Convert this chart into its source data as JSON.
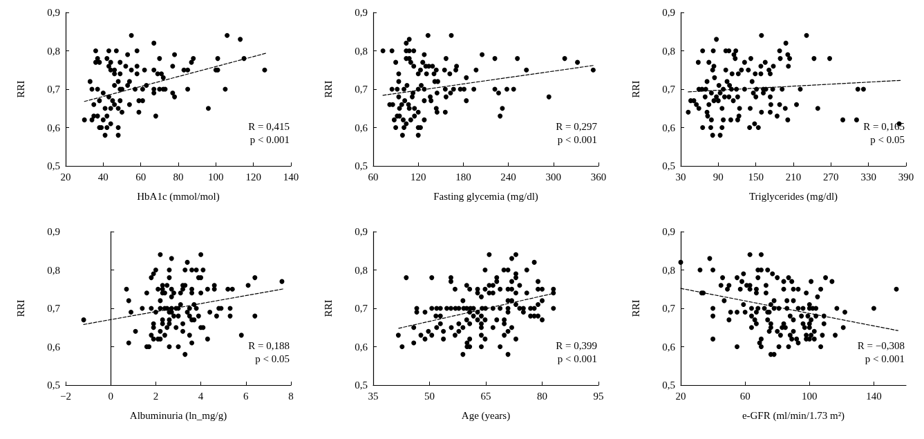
{
  "chart_data": [
    {
      "type": "scatter",
      "xlabel": "HbA1c (mmol/mol)",
      "ylabel": "RRI",
      "marker": "circle",
      "xlim": [
        20,
        140
      ],
      "xticks": [
        20,
        40,
        60,
        80,
        100,
        120,
        140
      ],
      "ylim": [
        0.5,
        0.9
      ],
      "yticks": [
        {
          "value": 0.5,
          "label": "0,5"
        },
        {
          "value": 0.6,
          "label": "0,6"
        },
        {
          "value": 0.7,
          "label": "0,7"
        },
        {
          "value": 0.8,
          "label": "0,8"
        },
        {
          "value": 0.9,
          "label": "0,9"
        }
      ],
      "annotations": [
        "R = 0,415",
        "p < 0.001"
      ],
      "series": [
        {
          "type": "scatter",
          "color": "#000000",
          "x": [
            30,
            33,
            34,
            34,
            35,
            35,
            36,
            36,
            37,
            37,
            38,
            38,
            37,
            38,
            39,
            40,
            41,
            40,
            41,
            42,
            42,
            43,
            43,
            43,
            44,
            44,
            44,
            42,
            44,
            45,
            46,
            46,
            46,
            46,
            47,
            48,
            48,
            48,
            48,
            49,
            49,
            49,
            49,
            50,
            50,
            52,
            53,
            53,
            54,
            54,
            55,
            55,
            57,
            58,
            58,
            58,
            59,
            59,
            61,
            62,
            63,
            61,
            67,
            67,
            67,
            67,
            68,
            69,
            70,
            70,
            71,
            72,
            72,
            73,
            77,
            77,
            78,
            78,
            83,
            85,
            85,
            87,
            88,
            96,
            100,
            101,
            101,
            105,
            106,
            113,
            115,
            126
          ],
          "values": [
            0.62,
            0.72,
            0.7,
            0.62,
            0.63,
            0.66,
            0.8,
            0.77,
            0.78,
            0.7,
            0.6,
            0.77,
            0.63,
            0.67,
            0.6,
            0.62,
            0.58,
            0.69,
            0.65,
            0.78,
            0.63,
            0.8,
            0.76,
            0.68,
            0.77,
            0.75,
            0.61,
            0.6,
            0.65,
            0.67,
            0.75,
            0.74,
            0.71,
            0.66,
            0.8,
            0.6,
            0.58,
            0.72,
            0.65,
            0.77,
            0.74,
            0.67,
            0.7,
            0.7,
            0.64,
            0.76,
            0.79,
            0.71,
            0.72,
            0.66,
            0.84,
            0.75,
            0.7,
            0.8,
            0.76,
            0.74,
            0.67,
            0.64,
            0.67,
            0.75,
            0.71,
            0.7,
            0.82,
            0.75,
            0.7,
            0.69,
            0.63,
            0.74,
            0.78,
            0.7,
            0.74,
            0.73,
            0.7,
            0.7,
            0.76,
            0.69,
            0.79,
            0.68,
            0.75,
            0.75,
            0.7,
            0.77,
            0.78,
            0.65,
            0.75,
            0.78,
            0.75,
            0.7,
            0.84,
            0.83,
            0.78,
            0.75
          ]
        },
        {
          "type": "line",
          "color": "#000000",
          "marker": "none",
          "line_style": "dashed",
          "x": [
            30,
            127
          ],
          "values": [
            0.668,
            0.794
          ]
        }
      ]
    },
    {
      "type": "scatter",
      "xlabel": "Fasting glycemia (mg/dl)",
      "ylabel": "RRI",
      "marker": "circle",
      "xlim": [
        60,
        360
      ],
      "xticks": [
        60,
        120,
        180,
        240,
        300,
        360
      ],
      "ylim": [
        0.5,
        0.9
      ],
      "yticks": [
        {
          "value": 0.5,
          "label": "0,5"
        },
        {
          "value": 0.6,
          "label": "0,6"
        },
        {
          "value": 0.7,
          "label": "0,7"
        },
        {
          "value": 0.8,
          "label": "0,8"
        },
        {
          "value": 0.9,
          "label": "0,9"
        }
      ],
      "annotations": [
        "R = 0,297",
        "p < 0.001"
      ],
      "series": [
        {
          "type": "scatter",
          "color": "#000000",
          "x": [
            73,
            82,
            85,
            85,
            86,
            88,
            90,
            90,
            92,
            92,
            94,
            94,
            94,
            95,
            95,
            98,
            99,
            100,
            101,
            101,
            102,
            104,
            104,
            104,
            105,
            104,
            108,
            108,
            108,
            107,
            108,
            110,
            110,
            112,
            113,
            114,
            114,
            115,
            115,
            120,
            120,
            120,
            120,
            120,
            123,
            123,
            124,
            126,
            128,
            128,
            128,
            128,
            130,
            131,
            133,
            134,
            136,
            137,
            139,
            141,
            142,
            144,
            144,
            145,
            145,
            146,
            155,
            156,
            156,
            157,
            157,
            162,
            163,
            164,
            167,
            170,
            171,
            176,
            181,
            184,
            184,
            194,
            197,
            205,
            222,
            222,
            227,
            229,
            232,
            238,
            247,
            252,
            264,
            294,
            315,
            332,
            353
          ],
          "values": [
            0.8,
            0.66,
            0.8,
            0.7,
            0.66,
            0.62,
            0.77,
            0.6,
            0.7,
            0.63,
            0.74,
            0.72,
            0.68,
            0.65,
            0.63,
            0.66,
            0.58,
            0.62,
            0.6,
            0.7,
            0.67,
            0.8,
            0.82,
            0.78,
            0.71,
            0.61,
            0.83,
            0.8,
            0.78,
            0.66,
            0.65,
            0.62,
            0.77,
            0.68,
            0.69,
            0.8,
            0.76,
            0.65,
            0.63,
            0.6,
            0.58,
            0.7,
            0.74,
            0.64,
            0.6,
            0.75,
            0.71,
            0.77,
            0.79,
            0.7,
            0.67,
            0.62,
            0.76,
            0.74,
            0.84,
            0.76,
            0.68,
            0.67,
            0.76,
            0.74,
            0.72,
            0.75,
            0.65,
            0.64,
            0.69,
            0.72,
            0.75,
            0.7,
            0.64,
            0.78,
            0.68,
            0.74,
            0.69,
            0.84,
            0.7,
            0.75,
            0.76,
            0.7,
            0.7,
            0.73,
            0.67,
            0.7,
            0.75,
            0.79,
            0.78,
            0.7,
            0.69,
            0.63,
            0.65,
            0.7,
            0.7,
            0.78,
            0.75,
            0.68,
            0.78,
            0.77,
            0.75
          ]
        },
        {
          "type": "line",
          "color": "#000000",
          "marker": "none",
          "line_style": "dashed",
          "x": [
            73,
            354
          ],
          "values": [
            0.684,
            0.762
          ]
        }
      ]
    },
    {
      "type": "scatter",
      "xlabel": "Triglycerides (mg/dl)",
      "ylabel": "RRI",
      "marker": "circle",
      "xlim": [
        30,
        390
      ],
      "xticks": [
        30,
        90,
        150,
        210,
        270,
        330,
        390
      ],
      "ylim": [
        0.5,
        0.9
      ],
      "yticks": [
        {
          "value": 0.5,
          "label": "0,5"
        },
        {
          "value": 0.6,
          "label": "0,6"
        },
        {
          "value": 0.7,
          "label": "0,7"
        },
        {
          "value": 0.8,
          "label": "0,8"
        },
        {
          "value": 0.9,
          "label": "0,9"
        }
      ],
      "annotations": [
        "R = 0,165",
        "p < 0.05"
      ],
      "series": [
        {
          "type": "scatter",
          "color": "#000000",
          "x": [
            42,
            46,
            51,
            55,
            58,
            59,
            59,
            64,
            65,
            65,
            69,
            70,
            72,
            72,
            73,
            75,
            75,
            78,
            79,
            79,
            81,
            81,
            82,
            83,
            83,
            84,
            87,
            87,
            90,
            91,
            93,
            93,
            96,
            96,
            98,
            98,
            100,
            102,
            102,
            104,
            107,
            107,
            108,
            110,
            111,
            112,
            114,
            115,
            117,
            118,
            119,
            121,
            121,
            122,
            123,
            124,
            127,
            132,
            132,
            138,
            140,
            141,
            142,
            144,
            146,
            148,
            149,
            150,
            151,
            154,
            158,
            158,
            159,
            159,
            162,
            162,
            165,
            166,
            171,
            173,
            173,
            173,
            174,
            177,
            178,
            184,
            188,
            188,
            189,
            192,
            197,
            198,
            201,
            201,
            204,
            202,
            215,
            221,
            231,
            243,
            249,
            268,
            289,
            311,
            313,
            322,
            379
          ],
          "values": [
            0.64,
            0.67,
            0.67,
            0.66,
            0.77,
            0.65,
            0.7,
            0.7,
            0.8,
            0.6,
            0.68,
            0.7,
            0.72,
            0.64,
            0.63,
            0.77,
            0.66,
            0.6,
            0.69,
            0.62,
            0.58,
            0.75,
            0.8,
            0.76,
            0.67,
            0.73,
            0.83,
            0.68,
            0.67,
            0.71,
            0.58,
            0.69,
            0.65,
            0.6,
            0.62,
            0.7,
            0.68,
            0.8,
            0.75,
            0.72,
            0.8,
            0.68,
            0.71,
            0.62,
            0.7,
            0.74,
            0.67,
            0.79,
            0.78,
            0.8,
            0.7,
            0.68,
            0.62,
            0.74,
            0.63,
            0.65,
            0.75,
            0.77,
            0.7,
            0.75,
            0.6,
            0.65,
            0.78,
            0.72,
            0.69,
            0.61,
            0.74,
            0.68,
            0.7,
            0.6,
            0.76,
            0.74,
            0.84,
            0.64,
            0.7,
            0.69,
            0.77,
            0.7,
            0.75,
            0.74,
            0.64,
            0.68,
            0.66,
            0.7,
            0.76,
            0.63,
            0.66,
            0.8,
            0.78,
            0.7,
            0.65,
            0.82,
            0.62,
            0.79,
            0.78,
            0.76,
            0.66,
            0.7,
            0.84,
            0.78,
            0.65,
            0.78,
            0.62,
            0.62,
            0.7,
            0.7,
            0.61
          ]
        },
        {
          "type": "line",
          "color": "#000000",
          "marker": "none",
          "line_style": "dashed",
          "x": [
            42,
            382
          ],
          "values": [
            0.693,
            0.723
          ]
        }
      ]
    },
    {
      "type": "scatter",
      "xlabel": "Albuminuria (ln_mg/g)",
      "ylabel": "RRI",
      "marker": "circle",
      "xlim": [
        -2,
        8
      ],
      "xticks": [
        {
          "value": -2,
          "label": "−2"
        },
        0,
        2,
        4,
        6,
        8
      ],
      "ylim": [
        0.5,
        0.9
      ],
      "yticks": [
        {
          "value": 0.5,
          "label": "0,5"
        },
        {
          "value": 0.6,
          "label": "0,6"
        },
        {
          "value": 0.7,
          "label": "0,7"
        },
        {
          "value": 0.8,
          "label": "0,8"
        },
        {
          "value": 0.9,
          "label": "0,9"
        }
      ],
      "annotations": [
        "R = 0,188",
        "p < 0.05"
      ],
      "series": [
        {
          "type": "scatter",
          "color": "#000000",
          "x": [
            -1.2,
            0.7,
            0.8,
            0.9,
            0.8,
            1.1,
            1.4,
            1.6,
            1.6,
            1.7,
            1.8,
            1.8,
            1.8,
            1.9,
            1.9,
            1.9,
            1.9,
            2.0,
            2.0,
            2.1,
            2.1,
            2.2,
            2.2,
            2.2,
            2.2,
            2.2,
            2.3,
            2.3,
            2.3,
            2.3,
            2.3,
            2.4,
            2.4,
            2.4,
            2.5,
            2.5,
            2.5,
            2.6,
            2.6,
            2.6,
            2.6,
            2.6,
            2.6,
            2.7,
            2.7,
            2.7,
            2.7,
            2.7,
            2.8,
            2.8,
            2.9,
            2.9,
            3.0,
            3.0,
            3.0,
            3.1,
            3.1,
            3.2,
            3.2,
            3.2,
            3.2,
            3.3,
            3.3,
            3.3,
            3.4,
            3.4,
            3.5,
            3.5,
            3.5,
            3.6,
            3.6,
            3.6,
            3.6,
            3.6,
            3.7,
            3.7,
            3.8,
            3.8,
            3.9,
            3.9,
            4.0,
            4.0,
            4.0,
            4.0,
            4.1,
            4.1,
            4.3,
            4.3,
            4.4,
            4.6,
            4.6,
            4.7,
            4.8,
            4.9,
            5.2,
            5.3,
            5.3,
            5.4,
            5.8,
            6.1,
            6.4,
            6.4,
            7.6
          ],
          "values": [
            0.67,
            0.75,
            0.72,
            0.69,
            0.61,
            0.64,
            0.7,
            0.74,
            0.6,
            0.6,
            0.7,
            0.78,
            0.63,
            0.65,
            0.66,
            0.79,
            0.62,
            0.8,
            0.69,
            0.62,
            0.75,
            0.72,
            0.84,
            0.7,
            0.64,
            0.62,
            0.67,
            0.76,
            0.74,
            0.66,
            0.75,
            0.7,
            0.74,
            0.63,
            0.7,
            0.76,
            0.65,
            0.69,
            0.67,
            0.8,
            0.78,
            0.6,
            0.66,
            0.73,
            0.7,
            0.83,
            0.75,
            0.69,
            0.68,
            0.74,
            0.7,
            0.65,
            0.6,
            0.7,
            0.68,
            0.74,
            0.71,
            0.64,
            0.76,
            0.66,
            0.75,
            0.58,
            0.8,
            0.76,
            0.82,
            0.69,
            0.68,
            0.7,
            0.63,
            0.61,
            0.75,
            0.74,
            0.67,
            0.8,
            0.71,
            0.67,
            0.7,
            0.8,
            0.78,
            0.68,
            0.84,
            0.65,
            0.78,
            0.74,
            0.8,
            0.65,
            0.62,
            0.75,
            0.69,
            0.75,
            0.76,
            0.68,
            0.7,
            0.7,
            0.75,
            0.68,
            0.7,
            0.75,
            0.63,
            0.76,
            0.78,
            0.68,
            0.77
          ]
        },
        {
          "type": "line",
          "color": "#000000",
          "marker": "none",
          "line_style": "dashed",
          "x": [
            -1.2,
            7.7
          ],
          "values": [
            0.658,
            0.751
          ]
        }
      ]
    },
    {
      "type": "scatter",
      "xlabel": "Age (years)",
      "ylabel": "RRI",
      "marker": "circle",
      "xlim": [
        35,
        95
      ],
      "xticks": [
        35,
        50,
        65,
        80,
        95
      ],
      "ylim": [
        0.5,
        0.9
      ],
      "yticks": [
        {
          "value": 0.5,
          "label": "0,5"
        },
        {
          "value": 0.6,
          "label": "0,6"
        },
        {
          "value": 0.7,
          "label": "0,7"
        },
        {
          "value": 0.8,
          "label": "0,8"
        },
        {
          "value": 0.9,
          "label": "0,9"
        }
      ],
      "annotations": [
        "R = 0,399",
        "p < 0.001"
      ],
      "series": [
        {
          "type": "scatter",
          "color": "#000000",
          "x": [
            41.7,
            42.7,
            43.8,
            45.8,
            45.8,
            46.6,
            46.6,
            47.7,
            48.8,
            48.8,
            49.7,
            50.6,
            50.6,
            50.6,
            51.7,
            51.9,
            51.9,
            52.9,
            52.9,
            52.9,
            53.7,
            53.7,
            54.6,
            55.7,
            55.7,
            55.8,
            55.7,
            56.8,
            56.8,
            56.9,
            57.8,
            57.8,
            57.8,
            58.9,
            58.9,
            58.9,
            59.1,
            59.9,
            59.9,
            59.9,
            60,
            60,
            60.7,
            60.7,
            60.7,
            60.7,
            60.7,
            60.9,
            61.7,
            61.7,
            62.8,
            62.8,
            62.8,
            62.8,
            63.8,
            63.8,
            63.8,
            63.8,
            63.8,
            63.8,
            64,
            64.8,
            64.8,
            64.8,
            64.8,
            64.9,
            65.9,
            65.9,
            65.9,
            66.9,
            66.9,
            66.9,
            66.9,
            67.9,
            67.9,
            67.9,
            68.8,
            68.8,
            68.8,
            69.8,
            69.9,
            69.9,
            69.9,
            70.9,
            70.9,
            70.9,
            70.9,
            70.9,
            70.9,
            70.9,
            71.9,
            71.9,
            71.9,
            71.9,
            71.9,
            73,
            73,
            73,
            73,
            73,
            73,
            74,
            74,
            75,
            75,
            75.9,
            75.9,
            76.9,
            76.9,
            77.9,
            77.9,
            77.9,
            78.9,
            78.9,
            78.9,
            78.9,
            80,
            80,
            80,
            83,
            83,
            83
          ],
          "values": [
            0.63,
            0.6,
            0.78,
            0.65,
            0.61,
            0.7,
            0.69,
            0.63,
            0.69,
            0.62,
            0.64,
            0.78,
            0.7,
            0.63,
            0.68,
            0.65,
            0.7,
            0.66,
            0.7,
            0.68,
            0.64,
            0.62,
            0.7,
            0.78,
            0.77,
            0.65,
            0.7,
            0.75,
            0.63,
            0.7,
            0.66,
            0.64,
            0.7,
            0.72,
            0.58,
            0.65,
            0.7,
            0.76,
            0.67,
            0.7,
            0.61,
            0.6,
            0.75,
            0.69,
            0.66,
            0.62,
            0.6,
            0.7,
            0.68,
            0.7,
            0.75,
            0.74,
            0.69,
            0.67,
            0.73,
            0.68,
            0.66,
            0.65,
            0.63,
            0.6,
            0.7,
            0.8,
            0.75,
            0.67,
            0.62,
            0.7,
            0.84,
            0.76,
            0.74,
            0.76,
            0.74,
            0.7,
            0.65,
            0.78,
            0.77,
            0.67,
            0.75,
            0.7,
            0.6,
            0.8,
            0.67,
            0.66,
            0.63,
            0.8,
            0.75,
            0.72,
            0.7,
            0.69,
            0.64,
            0.58,
            0.83,
            0.77,
            0.75,
            0.72,
            0.65,
            0.84,
            0.79,
            0.78,
            0.74,
            0.71,
            0.62,
            0.76,
            0.7,
            0.69,
            0.7,
            0.74,
            0.8,
            0.7,
            0.68,
            0.82,
            0.7,
            0.68,
            0.77,
            0.75,
            0.71,
            0.68,
            0.75,
            0.72,
            0.67,
            0.75,
            0.74,
            0.7
          ]
        },
        {
          "type": "line",
          "color": "#000000",
          "marker": "none",
          "line_style": "dashed",
          "x": [
            41.8,
            83.5
          ],
          "values": [
            0.648,
            0.74
          ]
        }
      ]
    },
    {
      "type": "scatter",
      "xlabel": "e-GFR (ml/min/1.73 m²)",
      "ylabel": "RRI",
      "marker": "circle",
      "xlim": [
        20,
        160
      ],
      "xticks": [
        20,
        60,
        100,
        140
      ],
      "ylim": [
        0.5,
        0.9
      ],
      "yticks": [
        {
          "value": 0.5,
          "label": "0,5"
        },
        {
          "value": 0.6,
          "label": "0,6"
        },
        {
          "value": 0.7,
          "label": "0,7"
        },
        {
          "value": 0.8,
          "label": "0,8"
        },
        {
          "value": 0.9,
          "label": "0,9"
        }
      ],
      "annotations": [
        "R = −0,308",
        "p < 0.001"
      ],
      "series": [
        {
          "type": "scatter",
          "color": "#000000",
          "x": [
            20,
            32,
            33,
            34,
            38,
            40,
            40,
            40,
            40,
            45,
            46,
            47,
            49,
            50,
            50,
            51,
            55,
            55,
            55,
            57,
            58,
            59,
            59,
            60,
            61,
            63,
            63,
            63,
            64,
            64,
            64,
            66,
            67,
            67,
            67,
            67,
            68,
            68,
            68,
            69,
            70,
            70,
            70,
            70,
            72,
            73,
            73,
            74,
            74,
            74,
            75,
            75,
            76,
            76,
            76,
            76,
            77,
            78,
            78,
            78,
            80,
            80,
            81,
            81,
            82,
            83,
            84,
            84,
            84,
            85,
            86,
            86,
            87,
            87,
            88,
            88,
            89,
            89,
            90,
            90,
            90,
            90,
            92,
            93,
            93,
            93,
            95,
            96,
            96,
            97,
            98,
            98,
            98,
            99,
            100,
            100,
            100,
            100,
            100,
            101,
            101,
            101,
            102,
            103,
            103,
            104,
            104,
            105,
            107,
            107,
            108,
            109,
            109,
            110,
            114,
            116,
            117,
            121,
            122,
            140,
            154
          ],
          "values": [
            0.82,
            0.8,
            0.74,
            0.74,
            0.83,
            0.8,
            0.7,
            0.68,
            0.62,
            0.76,
            0.78,
            0.72,
            0.75,
            0.76,
            0.67,
            0.69,
            0.78,
            0.69,
            0.6,
            0.75,
            0.77,
            0.79,
            0.71,
            0.69,
            0.76,
            0.84,
            0.76,
            0.75,
            0.7,
            0.68,
            0.65,
            0.67,
            0.74,
            0.75,
            0.69,
            0.66,
            0.78,
            0.8,
            0.7,
            0.61,
            0.6,
            0.84,
            0.8,
            0.62,
            0.7,
            0.76,
            0.74,
            0.8,
            0.69,
            0.67,
            0.64,
            0.69,
            0.65,
            0.66,
            0.71,
            0.58,
            0.79,
            0.58,
            0.72,
            0.7,
            0.78,
            0.64,
            0.7,
            0.6,
            0.63,
            0.65,
            0.77,
            0.75,
            0.66,
            0.65,
            0.72,
            0.7,
            0.78,
            0.6,
            0.63,
            0.68,
            0.77,
            0.62,
            0.75,
            0.72,
            0.67,
            0.64,
            0.62,
            0.75,
            0.61,
            0.7,
            0.68,
            0.66,
            0.7,
            0.65,
            0.74,
            0.62,
            0.63,
            0.68,
            0.7,
            0.65,
            0.66,
            0.71,
            0.62,
            0.63,
            0.67,
            0.77,
            0.7,
            0.62,
            0.64,
            0.68,
            0.7,
            0.73,
            0.75,
            0.6,
            0.63,
            0.66,
            0.68,
            0.78,
            0.77,
            0.63,
            0.7,
            0.65,
            0.69,
            0.7,
            0.75
          ]
        },
        {
          "type": "line",
          "color": "#000000",
          "marker": "none",
          "line_style": "dashed",
          "x": [
            20,
            155
          ],
          "values": [
            0.752,
            0.642
          ]
        }
      ]
    }
  ]
}
